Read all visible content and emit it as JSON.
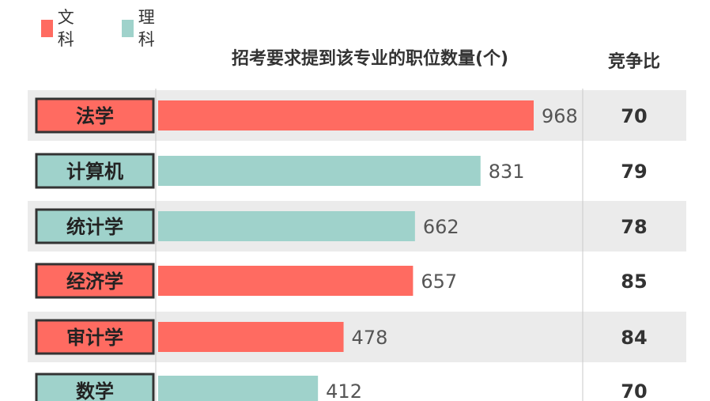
{
  "legend": [
    {
      "label": "文科",
      "color": "#ff6b61"
    },
    {
      "label": "理科",
      "color": "#9fd2cb"
    }
  ],
  "chart_data": {
    "type": "bar",
    "orientation": "horizontal",
    "title": "招考要求提到该专业的职位数量(个)",
    "ratio_header": "竞争比",
    "categories": [
      "法学",
      "计算机",
      "统计学",
      "经济学",
      "审计学",
      "数学"
    ],
    "values": [
      968,
      831,
      662,
      657,
      478,
      412
    ],
    "group": [
      "文科",
      "理科",
      "理科",
      "文科",
      "文科",
      "理科"
    ],
    "ratios": [
      70,
      79,
      78,
      85,
      84,
      70
    ],
    "xlim": [
      0,
      1000
    ],
    "stripe_color": "#ebebeb",
    "label_border_color": "#333333"
  }
}
